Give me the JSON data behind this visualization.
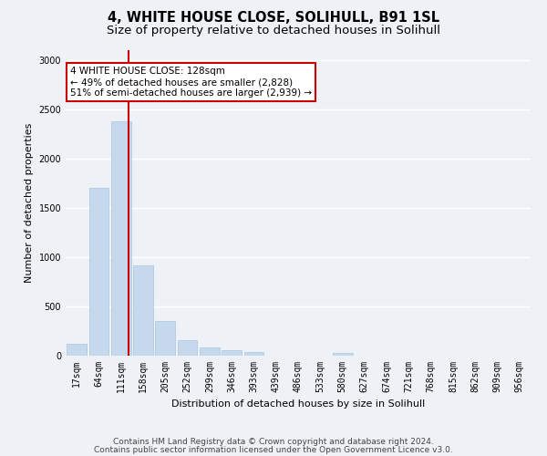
{
  "title1": "4, WHITE HOUSE CLOSE, SOLIHULL, B91 1SL",
  "title2": "Size of property relative to detached houses in Solihull",
  "xlabel": "Distribution of detached houses by size in Solihull",
  "ylabel": "Number of detached properties",
  "categories": [
    "17sqm",
    "64sqm",
    "111sqm",
    "158sqm",
    "205sqm",
    "252sqm",
    "299sqm",
    "346sqm",
    "393sqm",
    "439sqm",
    "486sqm",
    "533sqm",
    "580sqm",
    "627sqm",
    "674sqm",
    "721sqm",
    "768sqm",
    "815sqm",
    "862sqm",
    "909sqm",
    "956sqm"
  ],
  "values": [
    120,
    1700,
    2380,
    920,
    350,
    155,
    80,
    55,
    38,
    0,
    0,
    0,
    32,
    0,
    0,
    0,
    0,
    0,
    0,
    0,
    0
  ],
  "bar_color": "#c5d8ec",
  "bar_edge_color": "#a8c4de",
  "vline_color": "#cc0000",
  "annotation_text": "4 WHITE HOUSE CLOSE: 128sqm\n← 49% of detached houses are smaller (2,828)\n51% of semi-detached houses are larger (2,939) →",
  "annotation_box_color": "#ffffff",
  "annotation_box_edge": "#cc0000",
  "ylim": [
    0,
    3100
  ],
  "yticks": [
    0,
    500,
    1000,
    1500,
    2000,
    2500,
    3000
  ],
  "footer1": "Contains HM Land Registry data © Crown copyright and database right 2024.",
  "footer2": "Contains public sector information licensed under the Open Government Licence v3.0.",
  "background_color": "#eef2f7",
  "plot_bg_color": "#eef2f7",
  "grid_color": "#ffffff",
  "title1_fontsize": 10.5,
  "title2_fontsize": 9.5,
  "axis_label_fontsize": 8,
  "tick_fontsize": 7,
  "footer_fontsize": 6.5,
  "annot_fontsize": 7.5
}
